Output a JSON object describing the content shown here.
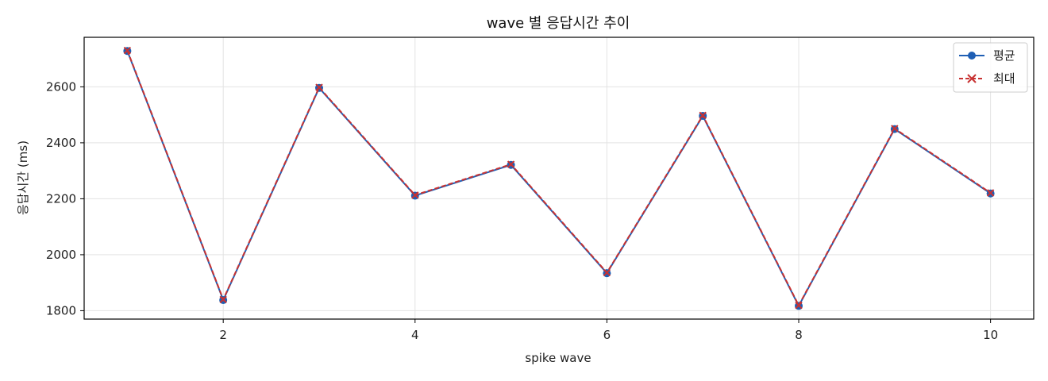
{
  "chart_data": {
    "type": "line",
    "title": "wave 별 응답시간 추이",
    "xlabel": "spike wave",
    "ylabel": "응답시간 (ms)",
    "x": [
      1,
      2,
      3,
      4,
      5,
      6,
      7,
      8,
      9,
      10
    ],
    "xlim": [
      0.55,
      10.45
    ],
    "ylim": [
      1770,
      2777
    ],
    "xticks": [
      2,
      4,
      6,
      8,
      10
    ],
    "yticks": [
      1800,
      2000,
      2200,
      2400,
      2600
    ],
    "grid": true,
    "legend_position": "top-right",
    "series": [
      {
        "name": "평균",
        "values": [
          2728,
          1838,
          2596,
          2211,
          2321,
          1934,
          2496,
          1817,
          2449,
          2219
        ],
        "color": "#1f5fb4",
        "marker": "circle",
        "line_style": "solid"
      },
      {
        "name": "최대",
        "values": [
          2730,
          1840,
          2598,
          2213,
          2323,
          1936,
          2498,
          1819,
          2451,
          2221
        ],
        "color": "#c83232",
        "marker": "x",
        "line_style": "dashed"
      }
    ]
  }
}
